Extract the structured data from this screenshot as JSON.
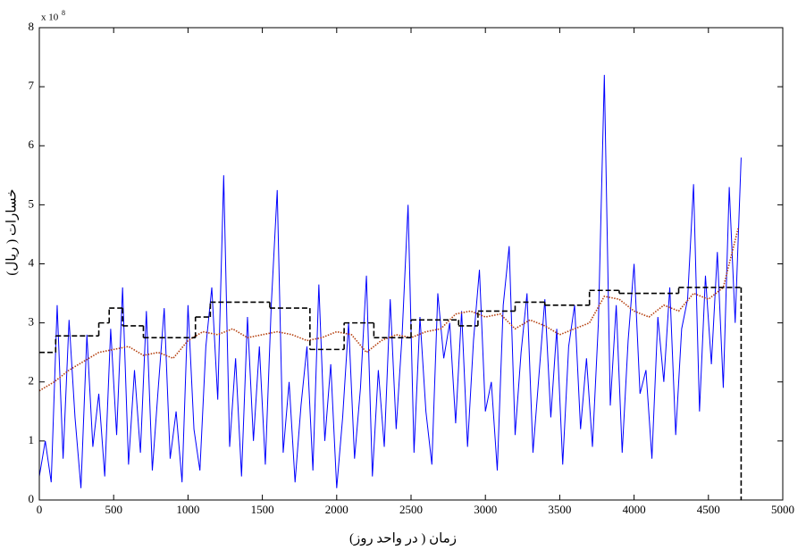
{
  "chart_data": {
    "type": "line",
    "xlabel": "زمان ( در واحد روز)",
    "ylabel": "خسارات ( ریال)",
    "y_multiplier": {
      "text": "x 10",
      "exponent": "8"
    },
    "xlim": [
      0,
      5000
    ],
    "xticks": [
      0,
      500,
      1000,
      1500,
      2000,
      2500,
      3000,
      3500,
      4000,
      4500,
      5000
    ],
    "ylim": [
      0,
      8
    ],
    "yticks": [
      0,
      1,
      2,
      3,
      4,
      5,
      6,
      7,
      8
    ],
    "series": [
      {
        "color": "#0000ff",
        "style": "solid",
        "draw": "line",
        "x": [
          0,
          40,
          80,
          120,
          160,
          200,
          240,
          280,
          320,
          360,
          400,
          440,
          480,
          520,
          560,
          600,
          640,
          680,
          720,
          760,
          800,
          840,
          880,
          920,
          960,
          1000,
          1040,
          1080,
          1120,
          1160,
          1200,
          1240,
          1280,
          1320,
          1360,
          1400,
          1440,
          1480,
          1520,
          1560,
          1600,
          1640,
          1680,
          1720,
          1760,
          1800,
          1840,
          1880,
          1920,
          1960,
          2000,
          2040,
          2080,
          2120,
          2160,
          2200,
          2240,
          2280,
          2320,
          2360,
          2400,
          2440,
          2480,
          2520,
          2560,
          2600,
          2640,
          2680,
          2720,
          2760,
          2800,
          2840,
          2880,
          2920,
          2960,
          3000,
          3040,
          3080,
          3120,
          3160,
          3200,
          3240,
          3280,
          3320,
          3360,
          3400,
          3440,
          3480,
          3520,
          3560,
          3600,
          3640,
          3680,
          3720,
          3760,
          3800,
          3840,
          3880,
          3920,
          3960,
          4000,
          4040,
          4080,
          4120,
          4160,
          4200,
          4240,
          4280,
          4320,
          4360,
          4400,
          4440,
          4480,
          4520,
          4560,
          4600,
          4640,
          4680,
          4720
        ],
        "values": [
          0.4,
          1.0,
          0.3,
          3.3,
          0.7,
          3.05,
          1.4,
          0.2,
          2.8,
          0.9,
          1.8,
          0.4,
          2.9,
          1.1,
          3.6,
          0.6,
          2.2,
          0.8,
          3.2,
          0.5,
          1.9,
          3.25,
          0.7,
          1.5,
          0.3,
          3.3,
          1.2,
          0.5,
          2.6,
          3.6,
          1.7,
          5.5,
          0.9,
          2.4,
          0.4,
          3.1,
          1.0,
          2.6,
          0.6,
          3.3,
          5.25,
          0.8,
          2.0,
          0.3,
          1.6,
          2.6,
          0.5,
          3.65,
          1.0,
          2.3,
          0.2,
          1.4,
          3.0,
          0.7,
          1.9,
          3.8,
          0.4,
          2.2,
          0.9,
          3.4,
          1.2,
          2.8,
          5.0,
          0.8,
          3.1,
          1.5,
          0.6,
          3.5,
          2.4,
          3.0,
          1.3,
          3.2,
          0.9,
          2.7,
          3.9,
          1.5,
          2.0,
          0.5,
          3.3,
          4.3,
          1.1,
          2.5,
          3.5,
          0.8,
          2.1,
          3.4,
          1.4,
          2.9,
          0.6,
          2.6,
          3.3,
          1.2,
          2.4,
          0.9,
          3.0,
          7.2,
          1.6,
          3.3,
          0.8,
          2.7,
          4.0,
          1.8,
          2.2,
          0.7,
          3.1,
          2.0,
          3.6,
          1.1,
          2.9,
          3.4,
          5.35,
          1.5,
          3.8,
          2.3,
          4.2,
          1.9,
          5.3,
          3.0,
          5.8
        ]
      },
      {
        "color": "#b5400f",
        "style": "dotted",
        "draw": "line",
        "x": [
          0,
          100,
          200,
          300,
          400,
          500,
          600,
          700,
          800,
          900,
          1000,
          1100,
          1200,
          1300,
          1400,
          1500,
          1600,
          1700,
          1800,
          1900,
          2000,
          2100,
          2200,
          2300,
          2400,
          2500,
          2600,
          2700,
          2800,
          2900,
          3000,
          3100,
          3200,
          3300,
          3400,
          3500,
          3600,
          3700,
          3800,
          3900,
          4000,
          4100,
          4200,
          4300,
          4400,
          4500,
          4600,
          4700
        ],
        "values": [
          1.85,
          2.0,
          2.2,
          2.35,
          2.5,
          2.55,
          2.6,
          2.45,
          2.5,
          2.4,
          2.7,
          2.85,
          2.8,
          2.9,
          2.75,
          2.8,
          2.85,
          2.8,
          2.7,
          2.75,
          2.85,
          2.8,
          2.5,
          2.7,
          2.8,
          2.75,
          2.85,
          2.9,
          3.15,
          3.2,
          3.1,
          3.15,
          2.9,
          3.05,
          2.95,
          2.8,
          2.9,
          3.0,
          3.45,
          3.4,
          3.2,
          3.1,
          3.3,
          3.2,
          3.5,
          3.4,
          3.6,
          4.6
        ]
      },
      {
        "color": "#000000",
        "style": "dashed",
        "draw": "step",
        "x": [
          0,
          110,
          400,
          470,
          560,
          700,
          1050,
          1150,
          1550,
          1820,
          2050,
          2250,
          2500,
          2820,
          2950,
          3200,
          3400,
          3700,
          3900,
          4300,
          4720
        ],
        "values": [
          2.5,
          2.78,
          3.0,
          3.25,
          2.95,
          2.75,
          3.1,
          3.35,
          3.25,
          2.55,
          3.0,
          2.75,
          3.05,
          2.95,
          3.2,
          3.35,
          3.3,
          3.55,
          3.5,
          3.6,
          0
        ]
      }
    ]
  }
}
